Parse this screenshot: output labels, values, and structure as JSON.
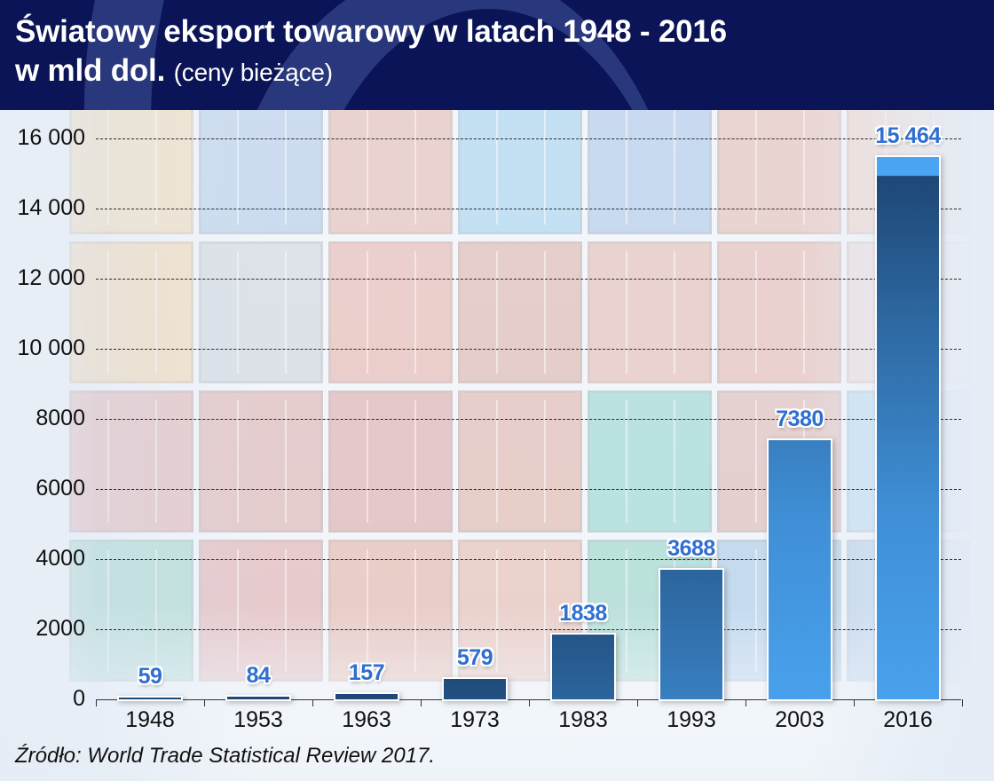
{
  "header": {
    "title_line1": "Światowy eksport towarowy w latach 1948 - 2016",
    "title_line2_bold": "w mld dol.",
    "title_line2_sub": "(ceny bieżące)",
    "background_color": "#0a1456"
  },
  "source": "Źródło: World Trade Statistical Review 2017.",
  "colors": {
    "bar_bottom": "#4ba5f2",
    "bar_top": "#1e4776",
    "value_label": "#2f6fd0"
  },
  "chart_data": {
    "type": "bar",
    "title": "Światowy eksport towarowy w latach 1948 - 2016 w mld dol. (ceny bieżące)",
    "xlabel": "",
    "ylabel": "mld dol.",
    "categories": [
      "1948",
      "1953",
      "1963",
      "1973",
      "1983",
      "1993",
      "2003",
      "2016"
    ],
    "values": [
      59,
      84,
      157,
      579,
      1838,
      3688,
      7380,
      15464
    ],
    "value_labels": [
      "59",
      "84",
      "157",
      "579",
      "1838",
      "3688",
      "7380",
      "15 464"
    ],
    "ylim": [
      0,
      16000
    ],
    "yticks": [
      0,
      2000,
      4000,
      6000,
      8000,
      10000,
      12000,
      14000,
      16000
    ],
    "ytick_labels": [
      "0",
      "2000",
      "4000",
      "6000",
      "8000",
      "10 000",
      "12 000",
      "14 000",
      "16 000"
    ],
    "grid": "horizontal dashed",
    "legend": "none"
  }
}
